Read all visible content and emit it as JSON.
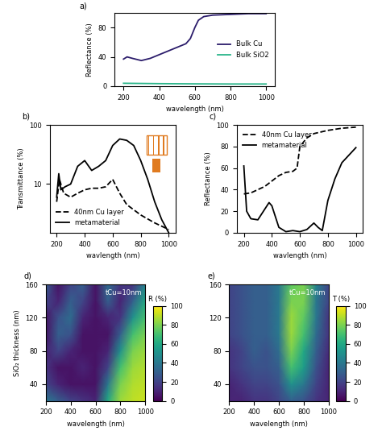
{
  "chart_data": [
    {
      "type": "line",
      "title": "a)",
      "x_label": "wavelength (nm)",
      "y_label": "Reflectance (%)",
      "xlim": [
        150,
        1050
      ],
      "xticks": [
        200,
        400,
        600,
        800,
        1000
      ],
      "ylim": [
        0,
        100
      ],
      "yticks": [
        0,
        40,
        80
      ],
      "legend": "center right",
      "series": [
        {
          "name": "Bulk Cu",
          "color": "#2b1c6b",
          "line_style": "solid",
          "x": [
            200,
            220,
            250,
            300,
            350,
            400,
            450,
            500,
            550,
            575,
            600,
            620,
            650,
            700,
            800,
            900,
            1000
          ],
          "values": [
            37,
            40,
            38,
            35,
            38,
            43,
            48,
            53,
            58,
            65,
            80,
            90,
            95,
            97,
            98,
            99,
            99
          ]
        },
        {
          "name": "Bulk SiO2",
          "color": "#2bb58a",
          "line_style": "solid",
          "x": [
            200,
            400,
            600,
            800,
            1000
          ],
          "values": [
            4,
            3.5,
            3.2,
            3,
            3
          ]
        }
      ]
    },
    {
      "type": "line",
      "title": "b)",
      "x_label": "wavlength (nm)",
      "y_label": "Transmittance (%)",
      "log": "y",
      "xlim": [
        150,
        1050
      ],
      "xticks": [
        200,
        400,
        600,
        800,
        1000
      ],
      "ylim": [
        1.5,
        100
      ],
      "yticks": [
        10,
        100
      ],
      "legend": "lower left",
      "series": [
        {
          "name": "40nm Cu layer",
          "color": "#000000",
          "line_style": "dashed",
          "x": [
            200,
            220,
            250,
            300,
            350,
            400,
            450,
            500,
            550,
            600,
            650,
            700,
            800,
            900,
            1000
          ],
          "values": [
            5,
            12,
            7,
            6,
            7,
            8,
            8.5,
            8.5,
            9,
            12,
            7,
            4.5,
            3,
            2.2,
            1.7
          ]
        },
        {
          "name": "metamaterial",
          "color": "#000000",
          "line_style": "solid",
          "x": [
            200,
            215,
            230,
            260,
            300,
            350,
            400,
            450,
            500,
            550,
            600,
            650,
            700,
            750,
            800,
            850,
            900,
            950,
            1000
          ],
          "values": [
            6,
            15,
            8,
            9,
            10,
            20,
            25,
            17,
            20,
            25,
            45,
            58,
            55,
            45,
            25,
            12,
            5,
            2.5,
            1.5
          ]
        }
      ]
    },
    {
      "type": "line",
      "title": "c)",
      "x_label": "wavlength (nm)",
      "y_label": "Reflectance (%)",
      "xlim": [
        150,
        1050
      ],
      "xticks": [
        200,
        400,
        600,
        800,
        1000
      ],
      "ylim": [
        0,
        100
      ],
      "yticks": [
        0,
        20,
        40,
        60,
        80,
        100
      ],
      "legend": "upper left",
      "series": [
        {
          "name": "40nm Cu layer",
          "color": "#000000",
          "line_style": "dashed",
          "x": [
            200,
            250,
            300,
            350,
            400,
            450,
            500,
            550,
            580,
            600,
            650,
            700,
            800,
            900,
            1000
          ],
          "values": [
            36,
            37,
            40,
            43,
            48,
            53,
            56,
            57,
            60,
            80,
            88,
            92,
            95,
            97,
            98
          ]
        },
        {
          "name": "metamaterial",
          "color": "#000000",
          "line_style": "solid",
          "x": [
            200,
            220,
            250,
            300,
            350,
            380,
            400,
            450,
            500,
            550,
            600,
            650,
            700,
            730,
            760,
            800,
            850,
            900,
            1000
          ],
          "values": [
            62,
            20,
            13,
            12,
            22,
            28,
            25,
            5,
            1,
            2,
            1,
            3,
            9,
            5,
            2,
            30,
            50,
            65,
            79
          ]
        }
      ]
    },
    {
      "type": "heatmap",
      "title": "d)",
      "x_label": "wavelength (nm)",
      "y_label": "SiO₂ thickness (nm)",
      "annotation": "tCu=10nm",
      "colorbar_label": "R (%)",
      "xlim": [
        200,
        1000
      ],
      "xticks": [
        200,
        400,
        600,
        800,
        1000
      ],
      "ylim": [
        20,
        160
      ],
      "yticks": [
        40,
        80,
        120,
        160
      ],
      "x": [
        200,
        300,
        400,
        500,
        600,
        700,
        800,
        900,
        1000
      ],
      "y": [
        20,
        40,
        60,
        80,
        100,
        120,
        140,
        160
      ],
      "cells": [
        [
          40,
          30,
          20,
          15,
          10,
          60,
          85,
          90,
          92
        ],
        [
          20,
          10,
          5,
          5,
          5,
          40,
          80,
          88,
          90
        ],
        [
          15,
          5,
          5,
          10,
          5,
          20,
          70,
          85,
          88
        ],
        [
          10,
          20,
          10,
          5,
          5,
          10,
          50,
          80,
          85
        ],
        [
          5,
          30,
          25,
          5,
          5,
          5,
          30,
          70,
          80
        ],
        [
          5,
          25,
          35,
          10,
          5,
          10,
          15,
          50,
          70
        ],
        [
          20,
          10,
          30,
          20,
          5,
          30,
          10,
          30,
          60
        ],
        [
          30,
          5,
          20,
          30,
          5,
          35,
          15,
          15,
          45
        ]
      ],
      "colorbar_range": [
        0,
        100
      ],
      "colorbar_ticks": [
        0,
        20,
        40,
        60,
        80,
        100
      ]
    },
    {
      "type": "heatmap",
      "title": "e)",
      "x_label": "wavelength (nm)",
      "annotation": "tCu=10nm",
      "colorbar_label": "T (%)",
      "xlim": [
        200,
        1000
      ],
      "xticks": [
        200,
        400,
        600,
        800,
        1000
      ],
      "ylim": [
        20,
        160
      ],
      "yticks": [
        40,
        80,
        120,
        160
      ],
      "x": [
        200,
        300,
        400,
        500,
        600,
        700,
        800,
        900,
        1000
      ],
      "y": [
        20,
        40,
        60,
        80,
        100,
        120,
        140,
        160
      ],
      "cells": [
        [
          10,
          10,
          15,
          15,
          20,
          30,
          25,
          15,
          10
        ],
        [
          10,
          15,
          20,
          20,
          25,
          50,
          40,
          20,
          10
        ],
        [
          15,
          20,
          25,
          25,
          30,
          70,
          55,
          25,
          10
        ],
        [
          15,
          20,
          30,
          25,
          35,
          80,
          60,
          30,
          12
        ],
        [
          20,
          25,
          30,
          30,
          40,
          85,
          70,
          35,
          15
        ],
        [
          20,
          25,
          30,
          30,
          40,
          85,
          75,
          40,
          15
        ],
        [
          20,
          25,
          30,
          30,
          40,
          80,
          80,
          40,
          20
        ],
        [
          20,
          25,
          30,
          30,
          40,
          75,
          80,
          45,
          20
        ]
      ],
      "colorbar_range": [
        0,
        100
      ],
      "colorbar_ticks": [
        0,
        20,
        40,
        60,
        80,
        100
      ]
    }
  ]
}
